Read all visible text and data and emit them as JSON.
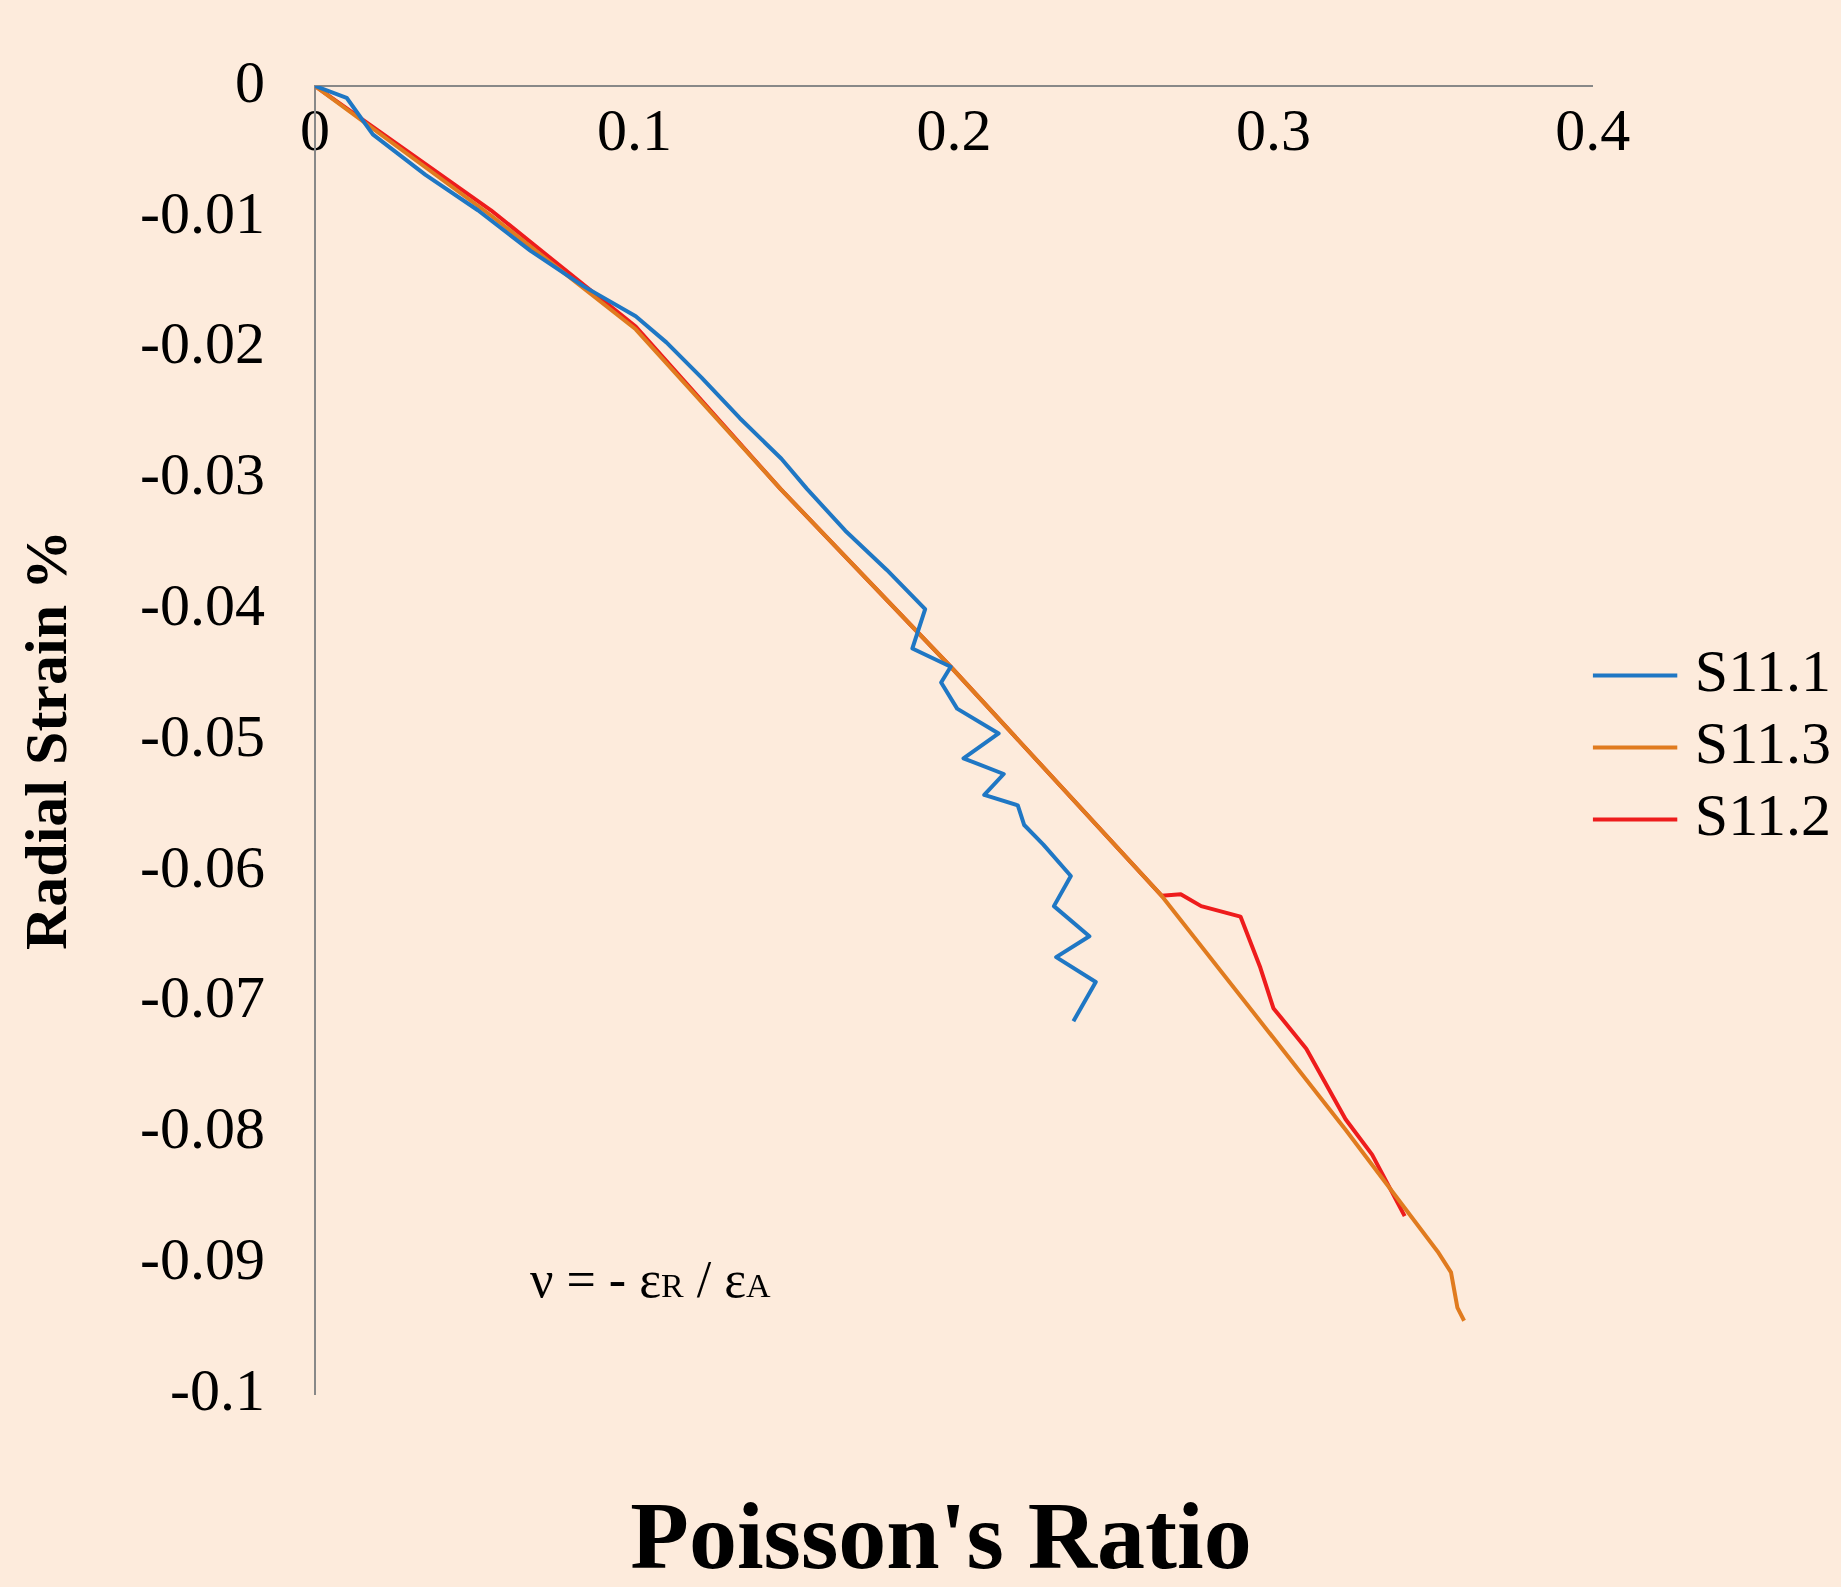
{
  "chart_data": {
    "type": "line",
    "xlabel": "Poisson's Ratio",
    "ylabel": "Radial Strain %",
    "xlim": [
      0,
      0.4
    ],
    "xticks": [
      0,
      0.1,
      0.2,
      0.3,
      0.4
    ],
    "ylim": [
      -0.1,
      0
    ],
    "yticks": [
      0,
      -0.01,
      -0.02,
      -0.03,
      -0.04,
      -0.05,
      -0.06,
      -0.07,
      -0.08,
      -0.09,
      -0.1
    ],
    "grid": false,
    "legend": "right",
    "marker": "none",
    "line_style": "solid",
    "annotations": [
      "ν = - ε$_{R}$ / ε$_{A}$"
    ],
    "series": [
      {
        "name": "S11.1",
        "color": "#1f77c4",
        "x": [
          0,
          0.0099,
          0.0181,
          0.0346,
          0.051,
          0.0675,
          0.084,
          0.1004,
          0.11,
          0.121,
          0.133,
          0.146,
          0.154,
          0.166,
          0.179,
          0.191,
          0.187,
          0.199,
          0.196,
          0.201,
          0.214,
          0.203,
          0.2156,
          0.2095,
          0.22,
          0.222,
          0.228,
          0.2366,
          0.2313,
          0.2424,
          0.232,
          0.2444,
          0.2374
        ],
        "values": [
          0,
          -0.0009,
          -0.0037,
          -0.0068,
          -0.0095,
          -0.0126,
          -0.0153,
          -0.0176,
          -0.0196,
          -0.0223,
          -0.0254,
          -0.0285,
          -0.0308,
          -0.034,
          -0.037,
          -0.04,
          -0.043,
          -0.0444,
          -0.0456,
          -0.0476,
          -0.0495,
          -0.0514,
          -0.0526,
          -0.0542,
          -0.055,
          -0.0565,
          -0.058,
          -0.0604,
          -0.0627,
          -0.065,
          -0.0666,
          -0.0685,
          -0.0715
        ]
      },
      {
        "name": "S11.3",
        "color": "#e07b1f",
        "x": [
          0,
          0.0551,
          0.1004,
          0.1457,
          0.199,
          0.265,
          0.3226,
          0.3514,
          0.3556,
          0.3576,
          0.3597
        ],
        "values": [
          0,
          -0.0099,
          -0.0186,
          -0.0308,
          -0.0444,
          -0.0619,
          -0.0798,
          -0.0891,
          -0.0907,
          -0.0934,
          -0.0944
        ]
      },
      {
        "name": "S11.2",
        "color": "#ee1c1c",
        "x": [
          0,
          0.0551,
          0.1004,
          0.1457,
          0.199,
          0.265,
          0.271,
          0.2774,
          0.2897,
          0.2959,
          0.3,
          0.3103,
          0.3226,
          0.3309,
          0.3411
        ],
        "values": [
          0,
          -0.0095,
          -0.0184,
          -0.0308,
          -0.0444,
          -0.0619,
          -0.0618,
          -0.0627,
          -0.0635,
          -0.0674,
          -0.0705,
          -0.0736,
          -0.079,
          -0.0817,
          -0.0864
        ]
      }
    ]
  }
}
